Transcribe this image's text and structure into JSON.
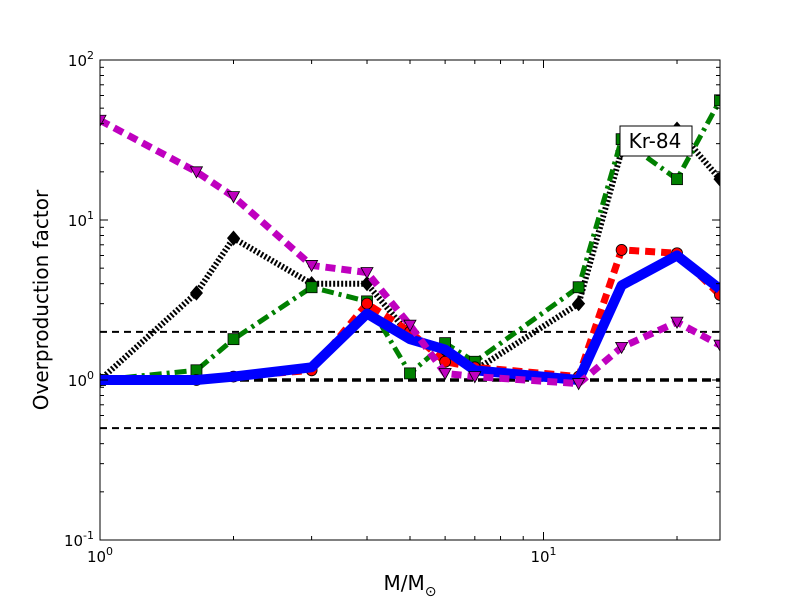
{
  "chart_data": {
    "type": "line",
    "xlabel": "M/M",
    "xlabel_sub": "⊙",
    "ylabel": "Overproduction factor",
    "xscale": "log",
    "yscale": "log",
    "xlim": [
      1,
      25
    ],
    "ylim": [
      0.1,
      100
    ],
    "x_ticks": [
      {
        "value": 1,
        "base": "10",
        "exp": "0"
      },
      {
        "value": 10,
        "base": "10",
        "exp": "1"
      }
    ],
    "y_ticks": [
      {
        "value": 0.1,
        "base": "10",
        "exp": "-1"
      },
      {
        "value": 1,
        "base": "10",
        "exp": "0"
      },
      {
        "value": 10,
        "base": "10",
        "exp": "1"
      },
      {
        "value": 100,
        "base": "10",
        "exp": "2"
      }
    ],
    "annotation": "Kr-84",
    "reference_lines": [
      {
        "y": 2,
        "style": "dashed",
        "color": "#000000"
      },
      {
        "y": 1,
        "style": "dashed-bold",
        "color": "#000000"
      },
      {
        "y": 0.5,
        "style": "dashed",
        "color": "#000000"
      }
    ],
    "series": [
      {
        "color": "#000000",
        "linestyle": "dotted",
        "marker": "diamond",
        "points": [
          [
            1,
            1.0
          ],
          [
            1.65,
            3.5
          ],
          [
            2,
            7.7
          ],
          [
            3,
            4.0
          ],
          [
            4,
            4.0
          ],
          [
            5,
            1.9
          ],
          [
            6,
            1.5
          ],
          [
            7,
            1.15
          ],
          [
            12,
            3.0
          ],
          [
            15,
            27
          ],
          [
            20,
            37
          ],
          [
            25,
            18
          ]
        ]
      },
      {
        "color": "#008000",
        "linestyle": "dashdot",
        "marker": "square",
        "points": [
          [
            1,
            1.0
          ],
          [
            1.65,
            1.15
          ],
          [
            2,
            1.8
          ],
          [
            3,
            3.8
          ],
          [
            4,
            3.1
          ],
          [
            5,
            1.1
          ],
          [
            6,
            1.7
          ],
          [
            7,
            1.3
          ],
          [
            12,
            3.8
          ],
          [
            15,
            32
          ],
          [
            20,
            18
          ],
          [
            25,
            56
          ]
        ]
      },
      {
        "color": "#ff0000",
        "linestyle": "dashed",
        "marker": "circle",
        "points": [
          [
            1,
            1.0
          ],
          [
            1.65,
            1.0
          ],
          [
            2,
            1.05
          ],
          [
            3,
            1.15
          ],
          [
            4,
            3.0
          ],
          [
            5,
            2.0
          ],
          [
            6,
            1.3
          ],
          [
            7,
            1.2
          ],
          [
            12,
            1.05
          ],
          [
            15,
            6.5
          ],
          [
            20,
            6.2
          ],
          [
            25,
            3.4
          ]
        ]
      },
      {
        "color": "#0000ff",
        "linestyle": "solid",
        "marker": "none",
        "points": [
          [
            1,
            1.0
          ],
          [
            1.65,
            1.0
          ],
          [
            2,
            1.05
          ],
          [
            3,
            1.2
          ],
          [
            4,
            2.6
          ],
          [
            5,
            1.8
          ],
          [
            6,
            1.55
          ],
          [
            7,
            1.15
          ],
          [
            12,
            1.0
          ],
          [
            15,
            3.9
          ],
          [
            20,
            6.0
          ],
          [
            25,
            3.7
          ]
        ]
      },
      {
        "color": "#bf00bf",
        "linestyle": "dashed",
        "marker": "triangle-down",
        "points": [
          [
            1,
            42
          ],
          [
            1.65,
            20
          ],
          [
            2,
            14
          ],
          [
            3,
            5.2
          ],
          [
            4,
            4.7
          ],
          [
            5,
            2.2
          ],
          [
            6,
            1.1
          ],
          [
            7,
            1.05
          ],
          [
            12,
            0.95
          ],
          [
            15,
            1.6
          ],
          [
            20,
            2.3
          ],
          [
            25,
            1.65
          ]
        ]
      }
    ]
  }
}
